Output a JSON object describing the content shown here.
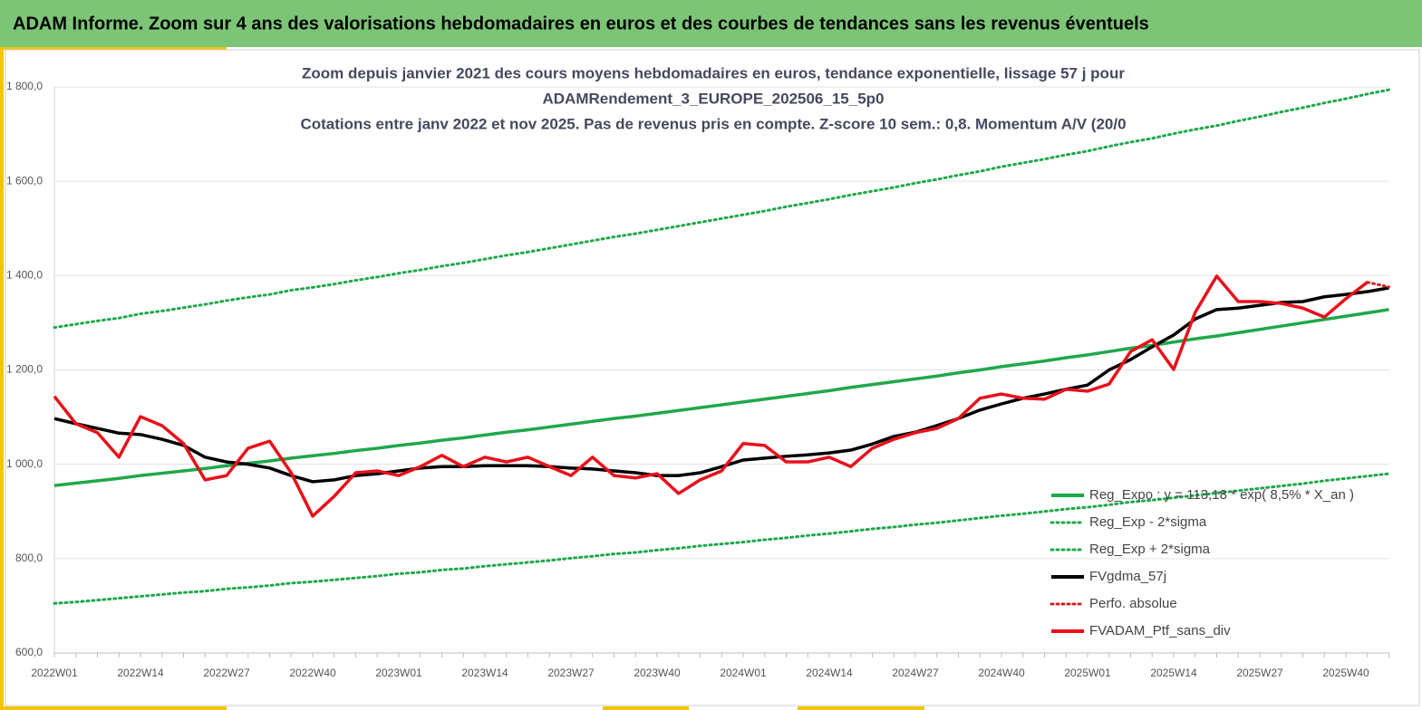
{
  "header": {
    "title": "ADAM Informe. Zoom sur 4 ans des valorisations hebdomadaires en euros et des courbes de tendances sans les revenus éventuels"
  },
  "chart_data": {
    "type": "line",
    "title": [
      "Zoom depuis janvier 2021 des cours moyens hebdomadaires  en euros, tendance exponentielle, lissage 57 j pour",
      "ADAMRendement_3_EUROPE_202506_15_5p0",
      "Cotations  entre janv 2022 et nov 2025. Pas de revenus pris en compte. Z-score 10 sem.: 0,8. Momentum A/V (20/0"
    ],
    "categories": [
      "2022W01",
      null,
      null,
      null,
      "2022W14",
      null,
      null,
      null,
      "2022W27",
      null,
      null,
      null,
      "2022W40",
      null,
      null,
      null,
      "2023W01",
      null,
      null,
      null,
      "2023W14",
      null,
      null,
      null,
      "2023W27",
      null,
      null,
      null,
      "2023W40",
      null,
      null,
      null,
      "2024W01",
      null,
      null,
      null,
      "2024W14",
      null,
      null,
      null,
      "2024W27",
      null,
      null,
      null,
      "2024W40",
      null,
      null,
      null,
      "2025W01",
      null,
      null,
      null,
      "2025W14",
      null,
      null,
      null,
      "2025W27",
      null,
      null,
      null,
      "2025W40",
      null,
      null
    ],
    "ylim": [
      600,
      1800
    ],
    "yticks": [
      {
        "value": 600,
        "label": "600,0"
      },
      {
        "value": 800,
        "label": "800,0"
      },
      {
        "value": 1000,
        "label": "1 000,0"
      },
      {
        "value": 1200,
        "label": "1 200,0"
      },
      {
        "value": 1400,
        "label": "1 400,0"
      },
      {
        "value": 1600,
        "label": "1 600,0"
      },
      {
        "value": 1800,
        "label": "1 800,0"
      }
    ],
    "grid": true,
    "series": [
      {
        "name": "Reg_Expo : y = 113,18 * exp( 8,5% *  X_an )",
        "color": "#1fa84a",
        "style": "solid",
        "values": [
          955,
          960,
          965,
          970,
          976,
          981,
          986,
          991,
          997,
          1002,
          1007,
          1013,
          1018,
          1023,
          1029,
          1034,
          1040,
          1045,
          1051,
          1056,
          1062,
          1068,
          1073,
          1079,
          1085,
          1091,
          1097,
          1102,
          1108,
          1114,
          1120,
          1126,
          1132,
          1138,
          1144,
          1150,
          1156,
          1163,
          1169,
          1175,
          1181,
          1187,
          1194,
          1200,
          1207,
          1213,
          1219,
          1226,
          1232,
          1239,
          1246,
          1252,
          1259,
          1266,
          1272,
          1279,
          1286,
          1293,
          1300,
          1307,
          1314,
          1321,
          1328
        ]
      },
      {
        "name": "Reg_Exp - 2*sigma",
        "color": "#1fa84a",
        "style": "dotted",
        "values": [
          705,
          708,
          712,
          716,
          720,
          724,
          728,
          731,
          736,
          739,
          743,
          748,
          751,
          755,
          759,
          763,
          768,
          771,
          776,
          779,
          784,
          788,
          792,
          796,
          801,
          805,
          810,
          813,
          818,
          822,
          827,
          831,
          835,
          840,
          844,
          849,
          853,
          858,
          863,
          867,
          872,
          876,
          881,
          886,
          891,
          895,
          900,
          905,
          909,
          914,
          920,
          924,
          929,
          934,
          939,
          944,
          949,
          954,
          959,
          965,
          970,
          975,
          980
        ]
      },
      {
        "name": "Reg_Exp + 2*sigma",
        "color": "#1fa84a",
        "style": "dotted",
        "values": [
          1290,
          1297,
          1304,
          1310,
          1319,
          1325,
          1332,
          1339,
          1347,
          1354,
          1360,
          1369,
          1375,
          1382,
          1390,
          1397,
          1405,
          1412,
          1420,
          1427,
          1435,
          1443,
          1450,
          1458,
          1466,
          1474,
          1482,
          1489,
          1497,
          1505,
          1513,
          1521,
          1529,
          1537,
          1546,
          1554,
          1562,
          1571,
          1579,
          1587,
          1596,
          1604,
          1613,
          1621,
          1631,
          1639,
          1647,
          1656,
          1664,
          1674,
          1683,
          1691,
          1701,
          1710,
          1718,
          1728,
          1737,
          1747,
          1756,
          1766,
          1775,
          1785,
          1794
        ]
      },
      {
        "name": "FVgdma_57j",
        "color": "#000000",
        "style": "solid",
        "values": [
          1097,
          1086,
          1076,
          1066,
          1063,
          1053,
          1040,
          1015,
          1005,
          1000,
          992,
          976,
          963,
          967,
          976,
          980,
          986,
          992,
          995,
          995,
          997,
          997,
          997,
          995,
          992,
          990,
          986,
          982,
          976,
          976,
          982,
          995,
          1009,
          1013,
          1017,
          1020,
          1024,
          1030,
          1043,
          1059,
          1068,
          1082,
          1097,
          1115,
          1128,
          1140,
          1149,
          1159,
          1168,
          1200,
          1222,
          1249,
          1274,
          1308,
          1328,
          1331,
          1337,
          1343,
          1345,
          1355,
          1360,
          1366,
          1374
        ]
      },
      {
        "name": "Perfo. absolue",
        "color": "#d42020",
        "style": "dotted",
        "values": [
          null,
          null,
          null,
          null,
          null,
          null,
          null,
          null,
          null,
          null,
          null,
          null,
          null,
          null,
          null,
          null,
          null,
          null,
          null,
          null,
          null,
          null,
          null,
          null,
          null,
          null,
          null,
          null,
          null,
          null,
          null,
          null,
          null,
          null,
          null,
          null,
          null,
          null,
          null,
          null,
          null,
          null,
          null,
          null,
          null,
          null,
          null,
          null,
          null,
          null,
          null,
          null,
          null,
          null,
          null,
          null,
          null,
          null,
          null,
          null,
          null,
          1386,
          1376
        ]
      },
      {
        "name": "FVADAM_Ptf_sans_div",
        "color": "#e8101a",
        "style": "solid",
        "values": [
          1144,
          1086,
          1067,
          1015,
          1101,
          1082,
          1044,
          967,
          976,
          1034,
          1049,
          982,
          890,
          932,
          982,
          986,
          976,
          995,
          1019,
          995,
          1015,
          1005,
          1015,
          995,
          976,
          1015,
          976,
          971,
          980,
          938,
          967,
          986,
          1044,
          1040,
          1005,
          1005,
          1015,
          995,
          1034,
          1053,
          1067,
          1076,
          1097,
          1140,
          1149,
          1140,
          1138,
          1159,
          1155,
          1170,
          1239,
          1264,
          1201,
          1322,
          1399,
          1345,
          1345,
          1341,
          1331,
          1312,
          1351,
          1386,
          null
        ]
      }
    ]
  }
}
